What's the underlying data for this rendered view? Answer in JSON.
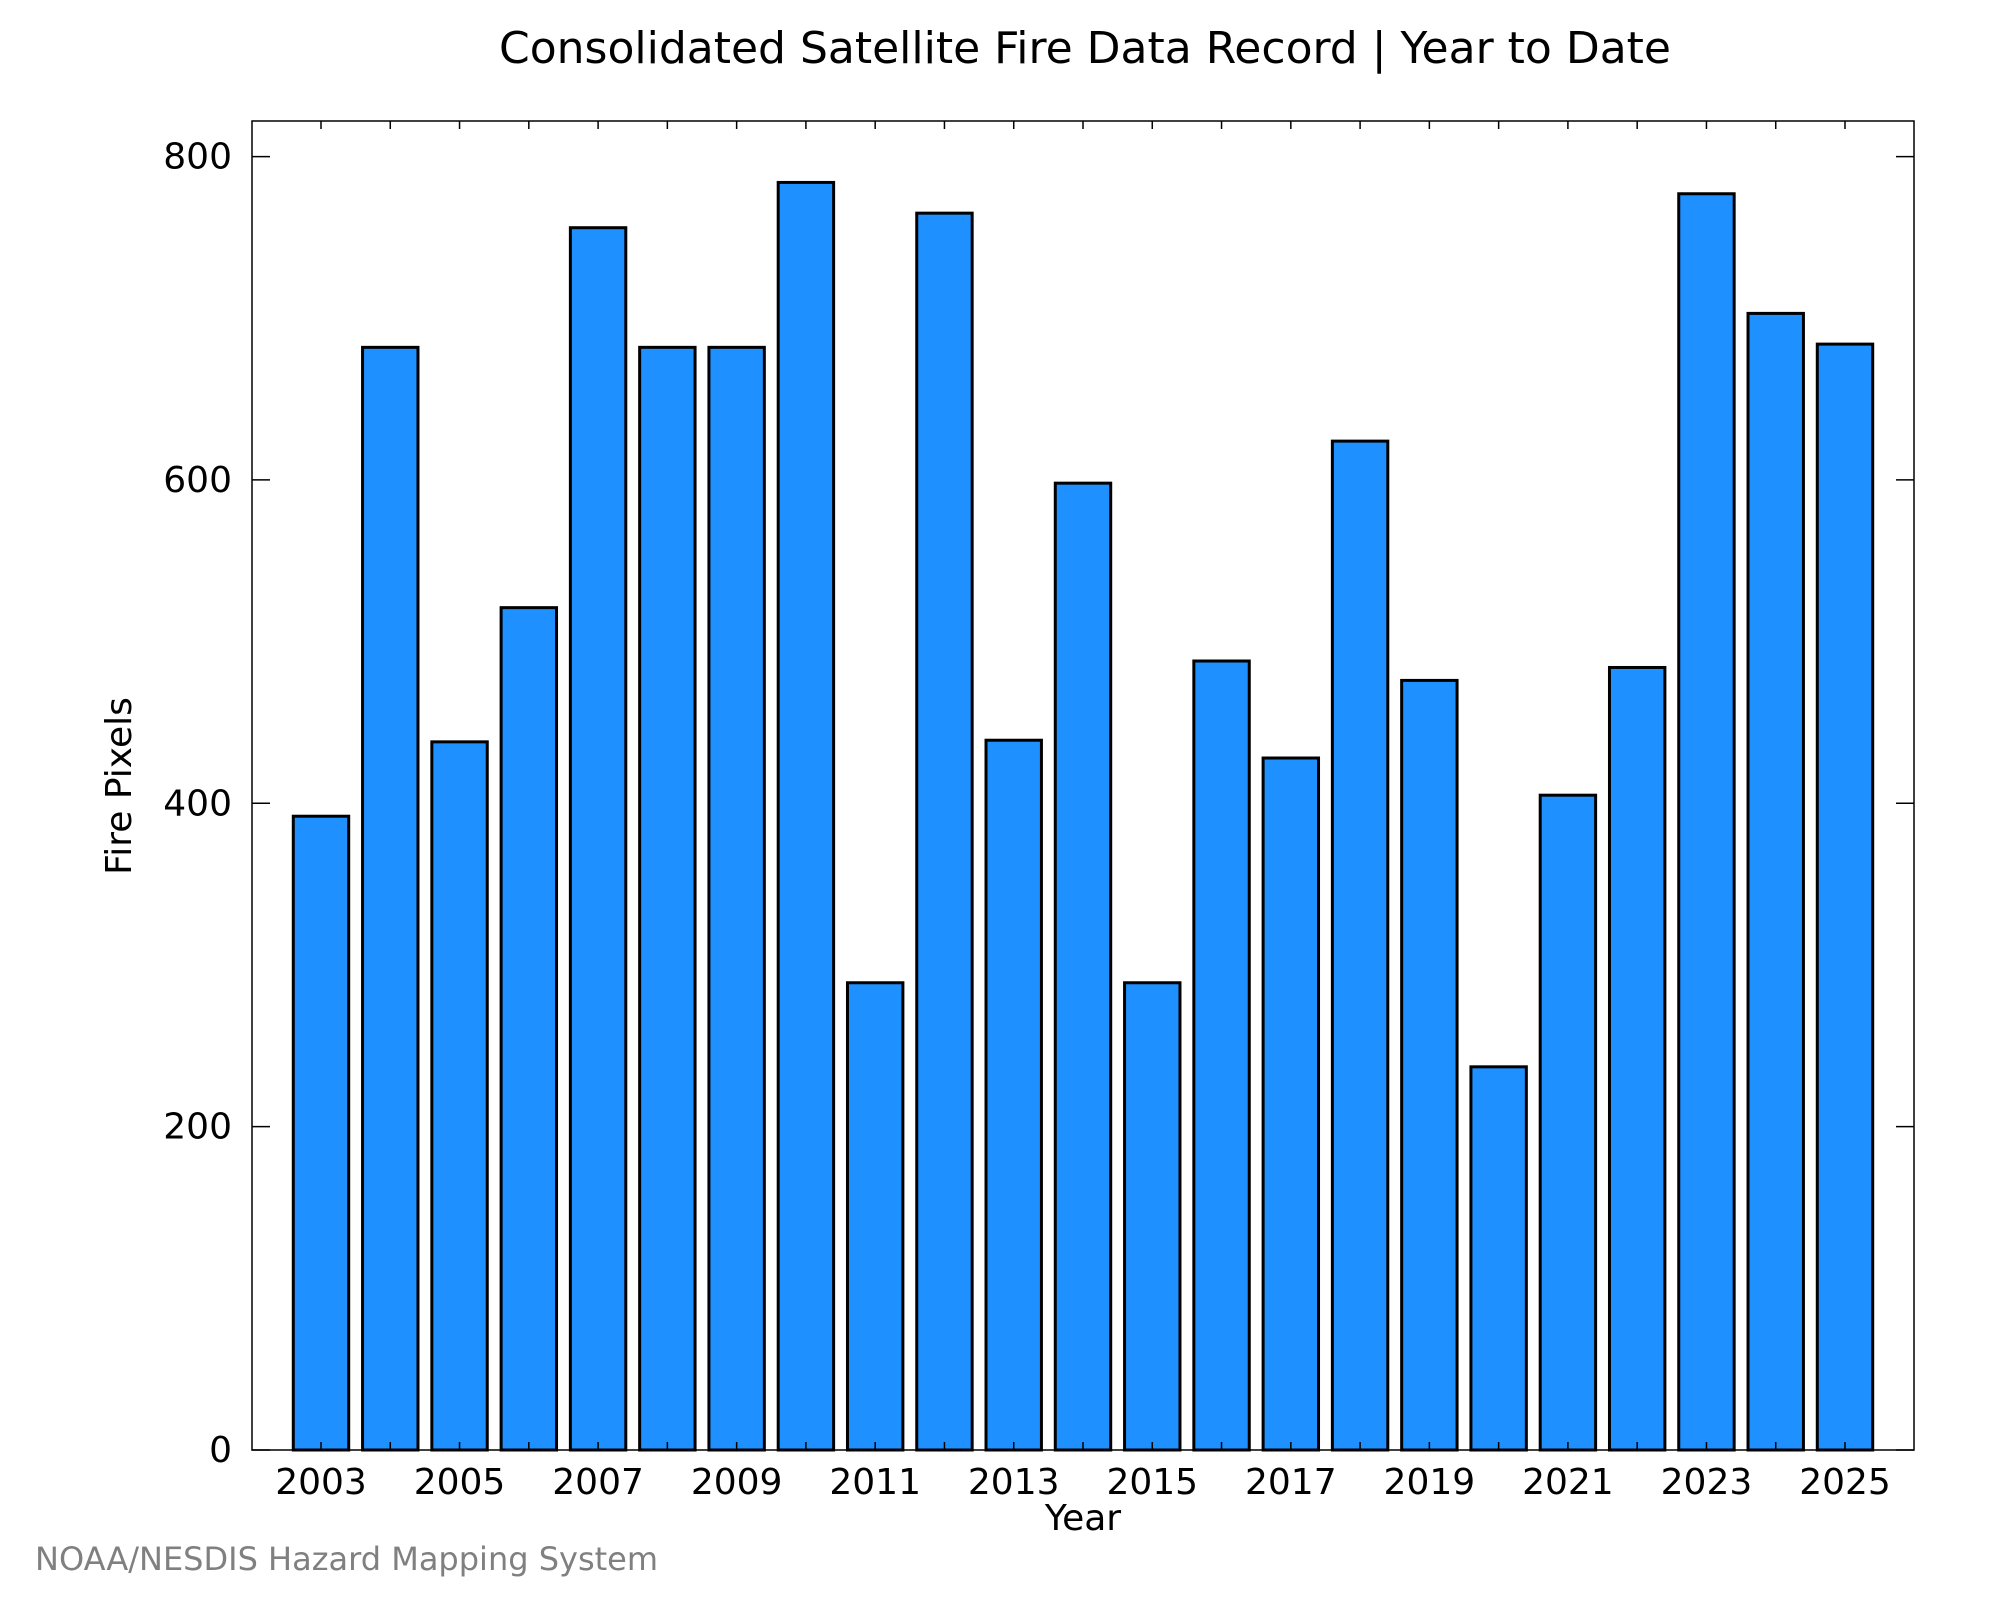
{
  "chart_data": {
    "type": "bar",
    "title": "Consolidated Satellite Fire Data Record | Year to Date",
    "xlabel": "Year",
    "ylabel": "Fire Pixels",
    "categories": [
      "2003",
      "2004",
      "2005",
      "2006",
      "2007",
      "2008",
      "2009",
      "2010",
      "2011",
      "2012",
      "2013",
      "2014",
      "2015",
      "2016",
      "2017",
      "2018",
      "2019",
      "2020",
      "2021",
      "2022",
      "2023",
      "2024",
      "2025"
    ],
    "values": [
      392,
      682,
      438,
      521,
      756,
      682,
      682,
      784,
      289,
      765,
      439,
      598,
      289,
      488,
      428,
      624,
      476,
      237,
      405,
      484,
      777,
      703,
      684
    ],
    "xtick_labels": [
      "2003",
      "2005",
      "2007",
      "2009",
      "2011",
      "2013",
      "2015",
      "2017",
      "2019",
      "2021",
      "2023",
      "2025"
    ],
    "yticks": [
      0,
      200,
      400,
      600,
      800
    ],
    "ylim": [
      0,
      822
    ],
    "grid": false,
    "bar_color": "#1e90ff",
    "edge_color": "#000000"
  },
  "footer": {
    "credit": "NOAA/NESDIS Hazard Mapping System"
  }
}
